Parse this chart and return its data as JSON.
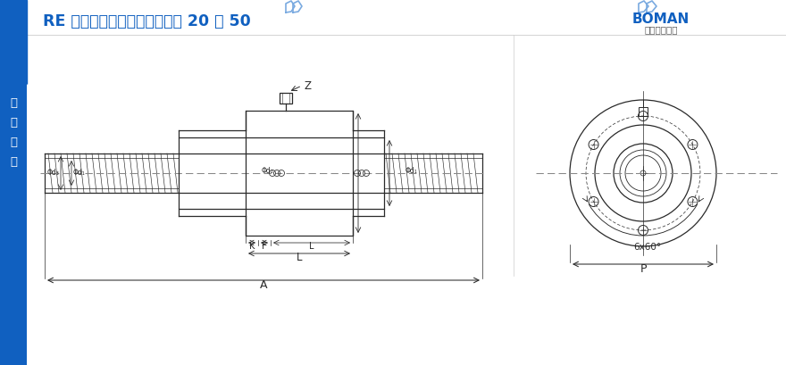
{
  "bg_color": "#ffffff",
  "title_text": "RE 系列（高导程高速型）导程 20 ～ 50",
  "title_color": "#1060c0",
  "sidebar_color": "#1060c0",
  "sidebar_text": "滚\n珠\n丝\n杠",
  "sidebar_text_color": "#ffffff",
  "line_color": "#2a2a2a",
  "dim_color": "#2a2a2a",
  "center_dash_color": "#555555",
  "boman_text": "BOMAN",
  "boman_sub": "－劲磁工业－",
  "logo_color": "#1060c0"
}
